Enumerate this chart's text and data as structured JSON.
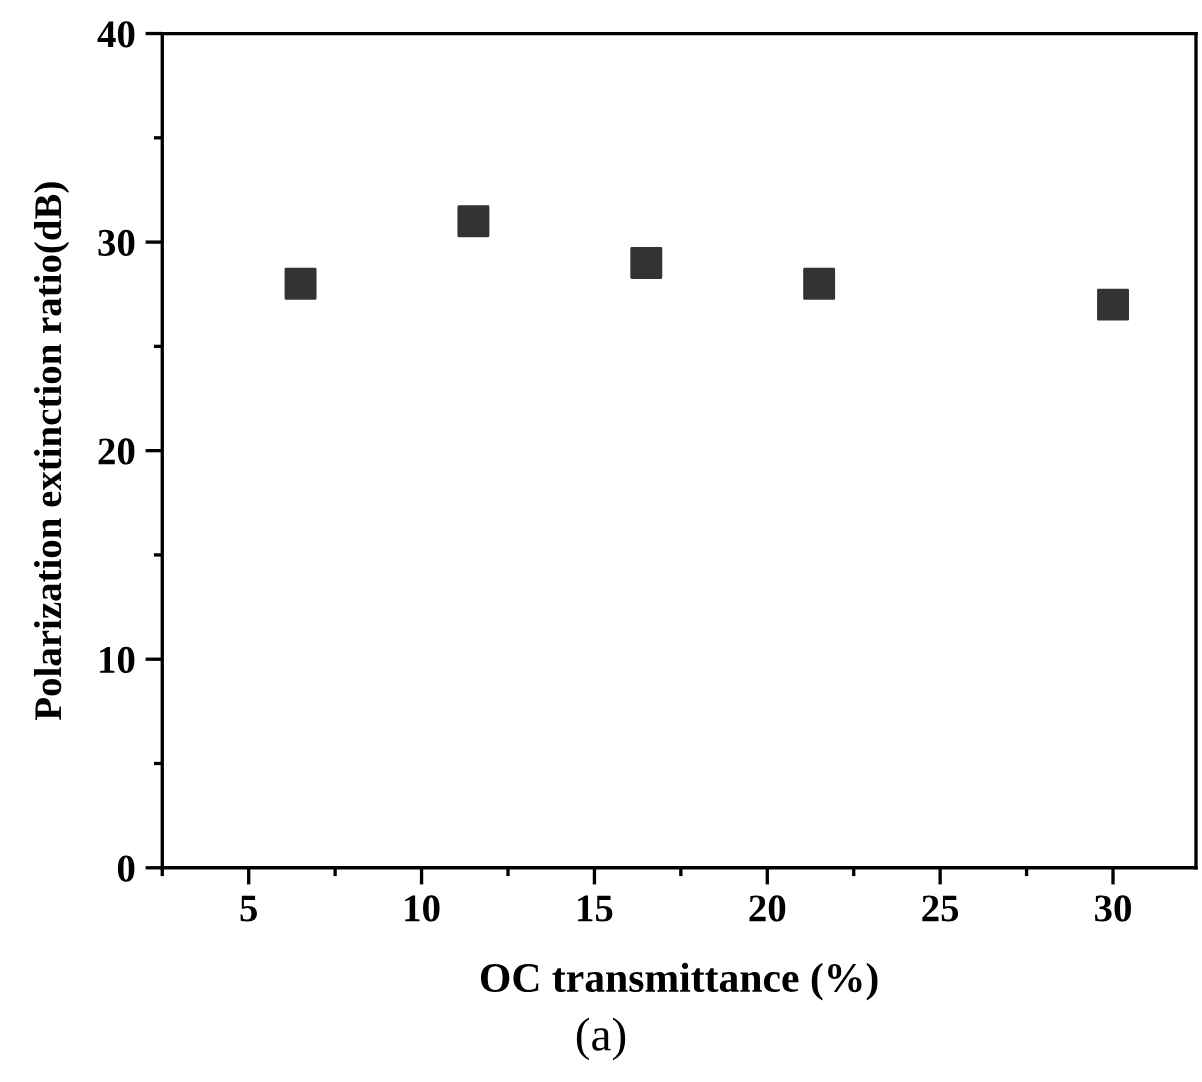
{
  "chart_data": {
    "type": "scatter",
    "xlabel": "OC transmittance (%)",
    "ylabel": "Polarization extinction ratio(dB)",
    "annotations": [
      "(a)"
    ],
    "x": [
      6.5,
      11.5,
      16.5,
      21.5,
      30
    ],
    "series": [
      {
        "color": "#333333",
        "values": [
          28,
          31,
          29,
          28,
          27
        ]
      }
    ],
    "xlim": [
      2.5,
      32.4
    ],
    "xticks": [
      5,
      10,
      15,
      20,
      25,
      30
    ],
    "ylim": [
      0,
      40
    ],
    "yticks": [
      0,
      10,
      20,
      30,
      40
    ],
    "marker": "square",
    "grid": false
  }
}
